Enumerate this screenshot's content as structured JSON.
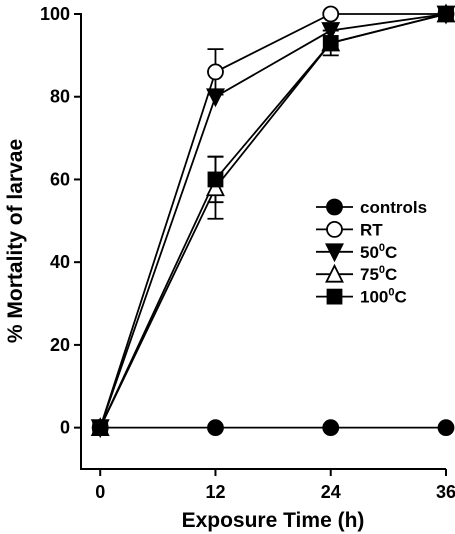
{
  "chart_data": {
    "type": "line",
    "xlabel": "Exposure Time (h)",
    "ylabel": "% Mortality of larvae",
    "x": [
      0,
      12,
      24,
      36
    ],
    "xticks": [
      "0",
      "12",
      "24",
      "36"
    ],
    "yticks": [
      "0",
      "20",
      "40",
      "60",
      "80",
      "100"
    ],
    "xlim": [
      -2,
      36
    ],
    "ylim": [
      -10,
      100
    ],
    "grid": false,
    "legend_position": "center-right",
    "series": [
      {
        "name": "controls",
        "marker": "filled-circle",
        "values": [
          0,
          0,
          0,
          0
        ],
        "err": [
          0,
          0,
          0,
          0
        ]
      },
      {
        "name": "RT",
        "marker": "open-circle",
        "values": [
          0,
          86,
          100,
          100
        ],
        "err": [
          0,
          5.5,
          0,
          0
        ]
      },
      {
        "name": "50",
        "name_sup": "0",
        "name_suffix": "C",
        "marker": "filled-triangle-down",
        "values": [
          0,
          80,
          96,
          100
        ],
        "err": [
          0,
          0,
          0,
          0
        ]
      },
      {
        "name": "75",
        "name_sup": "0",
        "name_suffix": "C",
        "marker": "open-triangle-up",
        "values": [
          0,
          58,
          93,
          100
        ],
        "err": [
          0,
          7.5,
          0,
          0
        ]
      },
      {
        "name": "100",
        "name_sup": "0",
        "name_suffix": "C",
        "marker": "filled-square",
        "values": [
          0,
          60,
          93,
          100
        ],
        "err": [
          0,
          5.5,
          3,
          0
        ]
      }
    ]
  }
}
